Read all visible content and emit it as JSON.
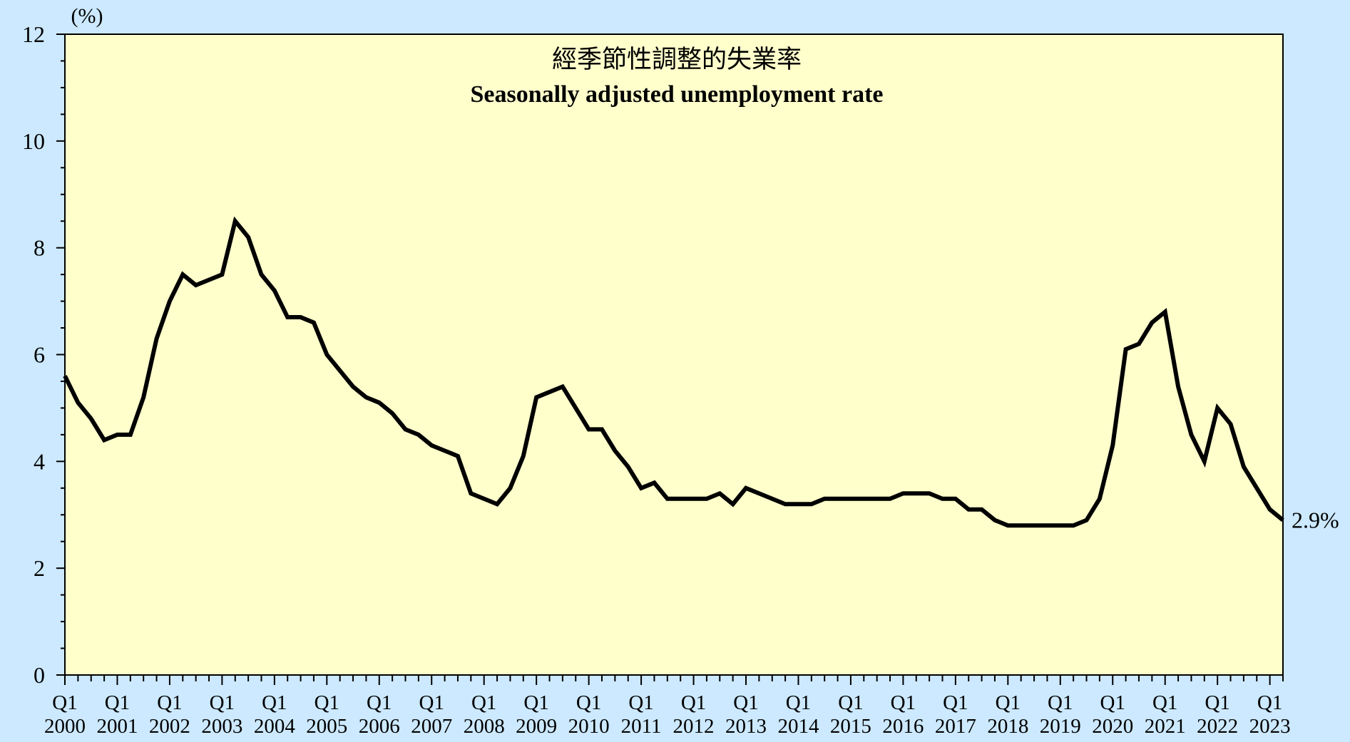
{
  "chart_data": {
    "type": "line",
    "title": "經季節性調整的失業率",
    "subtitle": "Seasonally adjusted unemployment rate",
    "y_label": "(%)",
    "last_value_label": "2.9%",
    "categories": [
      "Q1\n2000",
      null,
      null,
      null,
      "Q1\n2001",
      null,
      null,
      null,
      "Q1\n2002",
      null,
      null,
      null,
      "Q1\n2003",
      null,
      null,
      null,
      "Q1\n2004",
      null,
      null,
      null,
      "Q1\n2005",
      null,
      null,
      null,
      "Q1\n2006",
      null,
      null,
      null,
      "Q1\n2007",
      null,
      null,
      null,
      "Q1\n2008",
      null,
      null,
      null,
      "Q1\n2009",
      null,
      null,
      null,
      "Q1\n2010",
      null,
      null,
      null,
      "Q1\n2011",
      null,
      null,
      null,
      "Q1\n2012",
      null,
      null,
      null,
      "Q1\n2013",
      null,
      null,
      null,
      "Q1\n2014",
      null,
      null,
      null,
      "Q1\n2015",
      null,
      null,
      null,
      "Q1\n2016",
      null,
      null,
      null,
      "Q1\n2017",
      null,
      null,
      null,
      "Q1\n2018",
      null,
      null,
      null,
      "Q1\n2019",
      null,
      null,
      null,
      "Q1\n2020",
      null,
      null,
      null,
      "Q1\n2021",
      null,
      null,
      null,
      "Q1\n2022",
      null,
      null,
      null,
      "Q1\n2023",
      null
    ],
    "values": [
      5.6,
      5.1,
      4.8,
      4.4,
      4.5,
      4.5,
      5.2,
      6.3,
      7.0,
      7.5,
      7.3,
      7.4,
      7.5,
      8.5,
      8.2,
      7.5,
      7.2,
      6.7,
      6.7,
      6.6,
      6.0,
      5.7,
      5.4,
      5.2,
      5.1,
      4.9,
      4.6,
      4.5,
      4.3,
      4.2,
      4.1,
      3.4,
      3.3,
      3.2,
      3.5,
      4.1,
      5.2,
      5.3,
      5.4,
      5.0,
      4.6,
      4.6,
      4.2,
      3.9,
      3.5,
      3.6,
      3.3,
      3.3,
      3.3,
      3.3,
      3.4,
      3.2,
      3.5,
      3.4,
      3.3,
      3.2,
      3.2,
      3.2,
      3.3,
      3.3,
      3.3,
      3.3,
      3.3,
      3.3,
      3.4,
      3.4,
      3.4,
      3.3,
      3.3,
      3.1,
      3.1,
      2.9,
      2.8,
      2.8,
      2.8,
      2.8,
      2.8,
      2.8,
      2.9,
      3.3,
      4.3,
      6.1,
      6.2,
      6.6,
      6.8,
      5.4,
      4.5,
      4.0,
      5.0,
      4.7,
      3.9,
      3.5,
      3.1,
      2.9
    ],
    "color": "#000000",
    "ylim": [
      0,
      12
    ],
    "yticks": [
      0,
      2,
      4,
      6,
      8,
      10,
      12
    ],
    "yticks_minor": [
      0.5,
      1,
      1.5,
      2.5,
      3,
      3.5,
      4.5,
      5,
      5.5,
      6.5,
      7,
      7.5,
      8.5,
      9,
      9.5,
      10.5,
      11,
      11.5
    ],
    "background": "#cce9ff",
    "plot_background": "#ffffcc"
  }
}
